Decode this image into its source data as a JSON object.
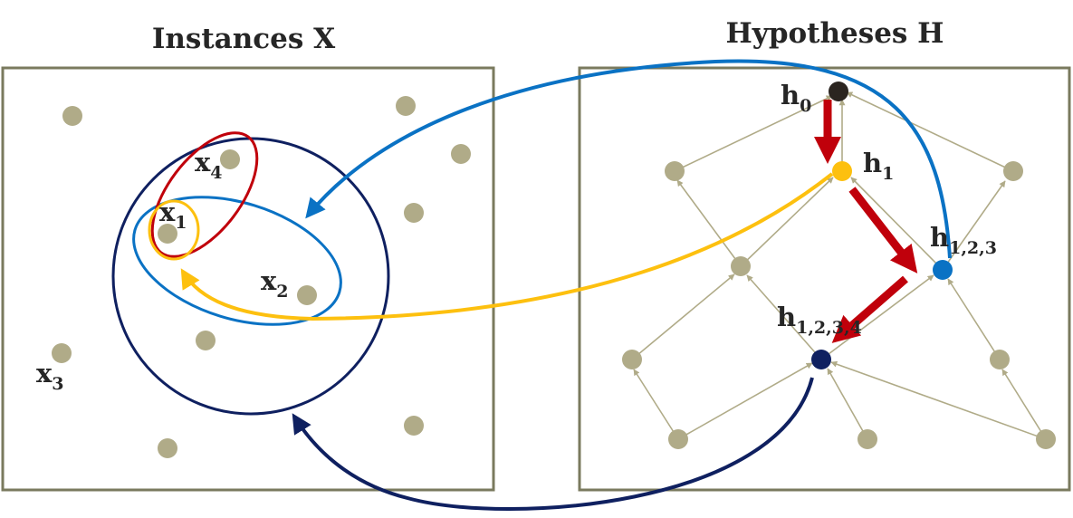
{
  "titles": {
    "instances": "Instances X",
    "hypotheses": "Hypotheses H"
  },
  "instance_labels": {
    "x1": {
      "base": "x",
      "sub": "1"
    },
    "x2": {
      "base": "x",
      "sub": "2"
    },
    "x3": {
      "base": "x",
      "sub": "3"
    },
    "x4": {
      "base": "x",
      "sub": "4"
    }
  },
  "hypothesis_labels": {
    "h0": {
      "base": "h",
      "sub": "0"
    },
    "h1": {
      "base": "h",
      "sub": "1"
    },
    "h123": {
      "base": "h",
      "sub": "1,2,3"
    },
    "h1234": {
      "base": "h",
      "sub": "1,2,3,4"
    }
  },
  "colors": {
    "frame": "#7a7a5e",
    "instance_dot": "#b0ab88",
    "lattice_edge": "#b0ab88",
    "h0": "#2b2520",
    "h1": "#fdc00f",
    "h123": "#0a72c4",
    "h1234": "#0f2060",
    "red_path": "#c0000b",
    "blue_arrow": "#0a72c4",
    "yellow_arrow": "#fdc00f",
    "navy_arrow": "#0f2060",
    "text": "#262626"
  },
  "icons": [
    "instance-dot",
    "hypothesis-node",
    "generalization-arrow",
    "mapping-arrow"
  ]
}
